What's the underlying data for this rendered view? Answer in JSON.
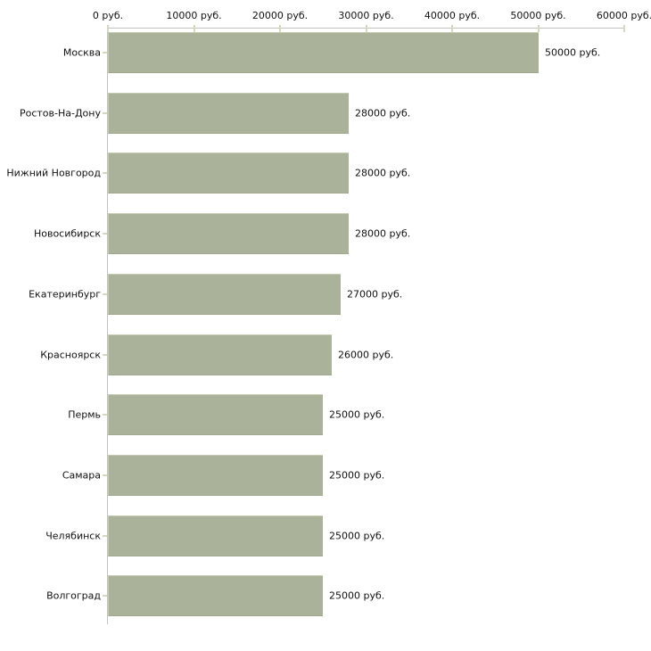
{
  "chart_data": {
    "type": "bar",
    "orientation": "horizontal",
    "title": "",
    "xlabel": "",
    "ylabel": "",
    "unit": "руб.",
    "categories": [
      "Москва",
      "Ростов-На-Дону",
      "Нижний Новгород",
      "Новосибирск",
      "Екатеринбург",
      "Красноярск",
      "Пермь",
      "Самара",
      "Челябинск",
      "Волгоград"
    ],
    "values": [
      50000,
      28000,
      28000,
      28000,
      27000,
      26000,
      25000,
      25000,
      25000,
      25000
    ],
    "value_labels": [
      "50000 руб.",
      "28000 руб.",
      "28000 руб.",
      "28000 руб.",
      "27000 руб.",
      "26000 руб.",
      "25000 руб.",
      "25000 руб.",
      "25000 руб.",
      "25000 руб."
    ],
    "xlim": [
      0,
      60000
    ],
    "x_ticks": [
      0,
      10000,
      20000,
      30000,
      40000,
      50000,
      60000
    ],
    "x_tick_labels": [
      "0 руб.",
      "10000 руб.",
      "20000 руб.",
      "30000 руб.",
      "40000 руб.",
      "50000 руб.",
      "60000 руб."
    ],
    "grid": false,
    "legend": false,
    "colors": {
      "bar_fill": "#aab29a",
      "bar_edge_light": "#c6cbb6",
      "bar_edge_dark": "#a0a890",
      "axis_line": "#c2c2c2",
      "tick_mark": "#d6d8bc",
      "text": "#111111",
      "background": "#ffffff"
    }
  }
}
